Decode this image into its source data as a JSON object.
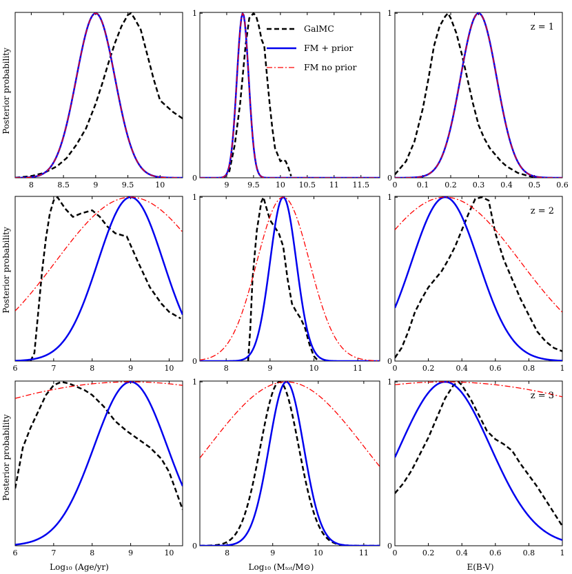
{
  "figure": {
    "ylabel": "Posterior probability",
    "xlabels": [
      "Log₁₀ (Age/yr)",
      "Log₁₀ (Mₜₒₜ/M⊙)",
      "E(B-V)"
    ]
  },
  "colors": {
    "galmc": "#000000",
    "fm_prior": "#0000ee",
    "fm_noprior": "#ff0000"
  },
  "legend": {
    "position": "upper-right of top-middle panel",
    "entries": [
      {
        "name": "GalMC",
        "style": "dashed",
        "color": "#000000"
      },
      {
        "name": "FM + prior",
        "style": "solid",
        "color": "#0000ee"
      },
      {
        "name": "FM no prior",
        "style": "dash-dot",
        "color": "#ff0000"
      }
    ]
  },
  "chart_data": [
    {
      "row": 0,
      "col": 0,
      "type": "line",
      "z_label": "",
      "xlim": [
        7.75,
        10.35
      ],
      "ylim": [
        0,
        1.005
      ],
      "xticks": [
        8,
        8.5,
        9,
        9.5,
        10
      ],
      "xtick_labels": [
        "8",
        "8.5",
        "9",
        "9.5",
        "10"
      ],
      "yticks": [],
      "ytick_labels": [],
      "series": [
        {
          "name": "GalMC",
          "style": "dashed",
          "color": "#000000",
          "x": [
            7.75,
            8.0,
            8.2,
            8.4,
            8.55,
            8.7,
            8.85,
            9.0,
            9.1,
            9.2,
            9.3,
            9.4,
            9.5,
            9.55,
            9.6,
            9.7,
            9.8,
            9.9,
            10.0,
            10.2,
            10.35
          ],
          "y": [
            0.0,
            0.01,
            0.03,
            0.07,
            0.12,
            0.2,
            0.3,
            0.45,
            0.57,
            0.7,
            0.82,
            0.92,
            0.99,
            1.0,
            0.97,
            0.9,
            0.75,
            0.6,
            0.47,
            0.4,
            0.36
          ]
        },
        {
          "name": "FM + prior",
          "style": "solid",
          "color": "#0000ee",
          "gauss": {
            "mu": 9.0,
            "sigma": 0.3,
            "amp": 1.0
          }
        },
        {
          "name": "FM no prior",
          "style": "dash-dot",
          "color": "#ff0000",
          "gauss": {
            "mu": 9.0,
            "sigma": 0.3,
            "amp": 1.0
          }
        }
      ]
    },
    {
      "row": 0,
      "col": 1,
      "type": "line",
      "z_label": "",
      "xlim": [
        8.5,
        11.85
      ],
      "ylim": [
        0,
        1.005
      ],
      "xticks": [
        9,
        9.5,
        10,
        10.5,
        11,
        11.5
      ],
      "xtick_labels": [
        "9",
        "9.5",
        "10",
        "10.5",
        "11",
        "11.5"
      ],
      "yticks": [
        0,
        1
      ],
      "ytick_labels": [
        "0",
        "1"
      ],
      "series": [
        {
          "name": "GalMC",
          "style": "dashed",
          "color": "#000000",
          "x": [
            8.95,
            9.05,
            9.15,
            9.25,
            9.35,
            9.42,
            9.5,
            9.55,
            9.6,
            9.65,
            9.7,
            9.75,
            9.8,
            9.85,
            9.9,
            9.95,
            10.0,
            10.05,
            10.1,
            10.15,
            10.2
          ],
          "y": [
            0.0,
            0.04,
            0.2,
            0.45,
            0.8,
            0.97,
            1.0,
            0.98,
            0.92,
            0.84,
            0.8,
            0.62,
            0.45,
            0.3,
            0.18,
            0.14,
            0.1,
            0.11,
            0.1,
            0.06,
            0.01
          ]
        },
        {
          "name": "FM + prior",
          "style": "solid",
          "color": "#0000ee",
          "gauss": {
            "mu": 9.3,
            "sigma": 0.11,
            "amp": 1.0
          }
        },
        {
          "name": "FM no prior",
          "style": "dash-dot",
          "color": "#ff0000",
          "gauss": {
            "mu": 9.3,
            "sigma": 0.11,
            "amp": 1.0
          }
        }
      ]
    },
    {
      "row": 0,
      "col": 2,
      "type": "line",
      "z_label": "z = 1",
      "xlim": [
        0,
        0.6
      ],
      "ylim": [
        0,
        1.005
      ],
      "xticks": [
        0,
        0.1,
        0.2,
        0.3,
        0.4,
        0.5,
        0.6
      ],
      "xtick_labels": [
        "0",
        "0.1",
        "0.2",
        "0.3",
        "0.4",
        "0.5",
        "0.6"
      ],
      "yticks": [
        0,
        1
      ],
      "ytick_labels": [
        "0",
        "1"
      ],
      "series": [
        {
          "name": "GalMC",
          "style": "dashed",
          "color": "#000000",
          "x": [
            0.0,
            0.04,
            0.07,
            0.1,
            0.12,
            0.14,
            0.16,
            0.18,
            0.19,
            0.2,
            0.22,
            0.24,
            0.26,
            0.28,
            0.3,
            0.32,
            0.34,
            0.36,
            0.38,
            0.4,
            0.44,
            0.48,
            0.52
          ],
          "y": [
            0.02,
            0.1,
            0.22,
            0.42,
            0.6,
            0.8,
            0.92,
            0.98,
            1.0,
            0.97,
            0.88,
            0.75,
            0.6,
            0.45,
            0.32,
            0.24,
            0.18,
            0.14,
            0.1,
            0.07,
            0.03,
            0.01,
            0.0
          ]
        },
        {
          "name": "FM + prior",
          "style": "solid",
          "color": "#0000ee",
          "gauss": {
            "mu": 0.3,
            "sigma": 0.065,
            "amp": 1.0
          }
        },
        {
          "name": "FM no prior",
          "style": "dash-dot",
          "color": "#ff0000",
          "gauss": {
            "mu": 0.3,
            "sigma": 0.065,
            "amp": 1.0
          }
        }
      ]
    },
    {
      "row": 1,
      "col": 0,
      "type": "line",
      "z_label": "",
      "xlim": [
        6,
        10.35
      ],
      "ylim": [
        0,
        1.005
      ],
      "xticks": [
        6,
        7,
        8,
        9,
        10
      ],
      "xtick_labels": [
        "6",
        "7",
        "8",
        "9",
        "10"
      ],
      "yticks": [],
      "ytick_labels": [],
      "series": [
        {
          "name": "GalMC",
          "style": "dashed",
          "color": "#000000",
          "x": [
            6.4,
            6.5,
            6.6,
            6.7,
            6.8,
            6.9,
            7.0,
            7.1,
            7.3,
            7.5,
            7.7,
            8.0,
            8.2,
            8.4,
            8.6,
            8.9,
            9.2,
            9.5,
            9.8,
            10.0,
            10.3
          ],
          "y": [
            0.0,
            0.05,
            0.3,
            0.55,
            0.75,
            0.9,
            0.98,
            1.0,
            0.93,
            0.88,
            0.9,
            0.92,
            0.88,
            0.82,
            0.78,
            0.76,
            0.6,
            0.45,
            0.35,
            0.3,
            0.26
          ]
        },
        {
          "name": "FM + prior",
          "style": "solid",
          "color": "#0000ee",
          "gauss": {
            "mu": 9.0,
            "sigma": 0.85,
            "amp": 1.0
          }
        },
        {
          "name": "FM no prior",
          "style": "dash-dot",
          "color": "#ff0000",
          "gauss": {
            "mu": 9.0,
            "sigma": 1.95,
            "amp": 1.0
          }
        }
      ]
    },
    {
      "row": 1,
      "col": 1,
      "type": "line",
      "z_label": "",
      "xlim": [
        7.4,
        11.5
      ],
      "ylim": [
        0,
        1.005
      ],
      "xticks": [
        8,
        9,
        10,
        11
      ],
      "xtick_labels": [
        "8",
        "9",
        "10",
        "11"
      ],
      "yticks": [
        0,
        1
      ],
      "ytick_labels": [
        "0",
        "1"
      ],
      "series": [
        {
          "name": "GalMC",
          "style": "dashed",
          "color": "#000000",
          "x": [
            8.5,
            8.55,
            8.6,
            8.7,
            8.8,
            8.85,
            8.9,
            9.0,
            9.1,
            9.2,
            9.3,
            9.4,
            9.5,
            9.6,
            9.7,
            9.8,
            9.9,
            10.0,
            10.1
          ],
          "y": [
            0.0,
            0.2,
            0.5,
            0.8,
            0.97,
            1.0,
            0.95,
            0.86,
            0.82,
            0.78,
            0.7,
            0.5,
            0.35,
            0.3,
            0.26,
            0.2,
            0.1,
            0.03,
            0.0
          ]
        },
        {
          "name": "FM + prior",
          "style": "solid",
          "color": "#0000ee",
          "gauss": {
            "mu": 9.3,
            "sigma": 0.3,
            "amp": 1.0
          }
        },
        {
          "name": "FM no prior",
          "style": "dash-dot",
          "color": "#ff0000",
          "gauss": {
            "mu": 9.3,
            "sigma": 0.6,
            "amp": 1.0
          }
        }
      ]
    },
    {
      "row": 1,
      "col": 2,
      "type": "line",
      "z_label": "z = 2",
      "xlim": [
        0,
        1.0
      ],
      "ylim": [
        0,
        1.005
      ],
      "xticks": [
        0,
        0.2,
        0.4,
        0.6,
        0.8,
        1
      ],
      "xtick_labels": [
        "0",
        "0.2",
        "0.4",
        "0.6",
        "0.8",
        "1"
      ],
      "yticks": [
        0,
        1
      ],
      "ytick_labels": [
        "0",
        "1"
      ],
      "series": [
        {
          "name": "GalMC",
          "style": "dashed",
          "color": "#000000",
          "x": [
            0.0,
            0.04,
            0.08,
            0.12,
            0.16,
            0.2,
            0.24,
            0.28,
            0.32,
            0.36,
            0.4,
            0.44,
            0.48,
            0.52,
            0.56,
            0.6,
            0.65,
            0.7,
            0.75,
            0.8,
            0.85,
            0.9,
            0.95,
            1.0
          ],
          "y": [
            0.02,
            0.08,
            0.18,
            0.3,
            0.38,
            0.45,
            0.5,
            0.55,
            0.62,
            0.7,
            0.8,
            0.9,
            0.99,
            1.0,
            0.98,
            0.78,
            0.62,
            0.5,
            0.38,
            0.28,
            0.18,
            0.12,
            0.08,
            0.06
          ]
        },
        {
          "name": "FM + prior",
          "style": "solid",
          "color": "#0000ee",
          "gauss": {
            "mu": 0.3,
            "sigma": 0.2,
            "amp": 1.0
          }
        },
        {
          "name": "FM no prior",
          "style": "dash-dot",
          "color": "#ff0000",
          "gauss": {
            "mu": 0.3,
            "sigma": 0.45,
            "amp": 1.0
          }
        }
      ]
    },
    {
      "row": 2,
      "col": 0,
      "type": "line",
      "z_label": "",
      "xlim": [
        6,
        10.35
      ],
      "ylim": [
        0,
        1.005
      ],
      "xticks": [
        6,
        7,
        8,
        9,
        10
      ],
      "xtick_labels": [
        "6",
        "7",
        "8",
        "9",
        "10"
      ],
      "yticks": [],
      "ytick_labels": [],
      "series": [
        {
          "name": "GalMC",
          "style": "dashed",
          "color": "#000000",
          "x": [
            6.0,
            6.2,
            6.4,
            6.6,
            6.8,
            7.0,
            7.2,
            7.4,
            7.6,
            7.8,
            8.0,
            8.3,
            8.6,
            8.9,
            9.2,
            9.5,
            9.8,
            10.0,
            10.2,
            10.35
          ],
          "y": [
            0.35,
            0.6,
            0.72,
            0.82,
            0.92,
            0.98,
            1.0,
            0.99,
            0.97,
            0.95,
            0.92,
            0.85,
            0.76,
            0.7,
            0.65,
            0.6,
            0.53,
            0.45,
            0.32,
            0.22
          ]
        },
        {
          "name": "FM + prior",
          "style": "solid",
          "color": "#0000ee",
          "gauss": {
            "mu": 9.0,
            "sigma": 0.95,
            "amp": 1.0
          }
        },
        {
          "name": "FM no prior",
          "style": "dash-dot",
          "color": "#ff0000",
          "gauss": {
            "mu": 9.0,
            "sigma": 6.5,
            "amp": 1.0
          }
        }
      ]
    },
    {
      "row": 2,
      "col": 1,
      "type": "line",
      "z_label": "",
      "xlim": [
        7.4,
        11.35
      ],
      "ylim": [
        0,
        1.005
      ],
      "xticks": [
        8,
        9,
        10,
        11
      ],
      "xtick_labels": [
        "8",
        "9",
        "10",
        "11"
      ],
      "yticks": [
        0,
        1
      ],
      "ytick_labels": [
        "0",
        "1"
      ],
      "series": [
        {
          "name": "GalMC",
          "style": "dashed",
          "color": "#000000",
          "gauss": {
            "mu": 9.15,
            "sigma": 0.42,
            "amp": 1.0
          }
        },
        {
          "name": "FM + prior",
          "style": "solid",
          "color": "#0000ee",
          "gauss": {
            "mu": 9.3,
            "sigma": 0.38,
            "amp": 1.0
          }
        },
        {
          "name": "FM no prior",
          "style": "dash-dot",
          "color": "#ff0000",
          "gauss": {
            "mu": 9.3,
            "sigma": 1.7,
            "amp": 1.0
          }
        }
      ]
    },
    {
      "row": 2,
      "col": 2,
      "type": "line",
      "z_label": "z = 3",
      "xlim": [
        0,
        1.0
      ],
      "ylim": [
        0,
        1.005
      ],
      "xticks": [
        0,
        0.2,
        0.4,
        0.6,
        0.8,
        1
      ],
      "xtick_labels": [
        "0",
        "0.2",
        "0.4",
        "0.6",
        "0.8",
        "1"
      ],
      "yticks": [
        0,
        1
      ],
      "ytick_labels": [
        "0",
        "1"
      ],
      "series": [
        {
          "name": "GalMC",
          "style": "dashed",
          "color": "#000000",
          "x": [
            0.0,
            0.05,
            0.1,
            0.15,
            0.2,
            0.25,
            0.3,
            0.35,
            0.38,
            0.4,
            0.45,
            0.5,
            0.55,
            0.6,
            0.65,
            0.7,
            0.75,
            0.8,
            0.85,
            0.9,
            0.95,
            1.0
          ],
          "y": [
            0.32,
            0.38,
            0.46,
            0.56,
            0.66,
            0.78,
            0.9,
            0.98,
            1.0,
            0.98,
            0.9,
            0.8,
            0.7,
            0.65,
            0.62,
            0.58,
            0.5,
            0.43,
            0.36,
            0.28,
            0.2,
            0.12
          ]
        },
        {
          "name": "FM + prior",
          "style": "solid",
          "color": "#0000ee",
          "gauss": {
            "mu": 0.3,
            "sigma": 0.27,
            "amp": 1.0
          }
        },
        {
          "name": "FM no prior",
          "style": "dash-dot",
          "color": "#ff0000",
          "gauss": {
            "mu": 0.3,
            "sigma": 1.6,
            "amp": 1.0
          }
        }
      ]
    }
  ]
}
